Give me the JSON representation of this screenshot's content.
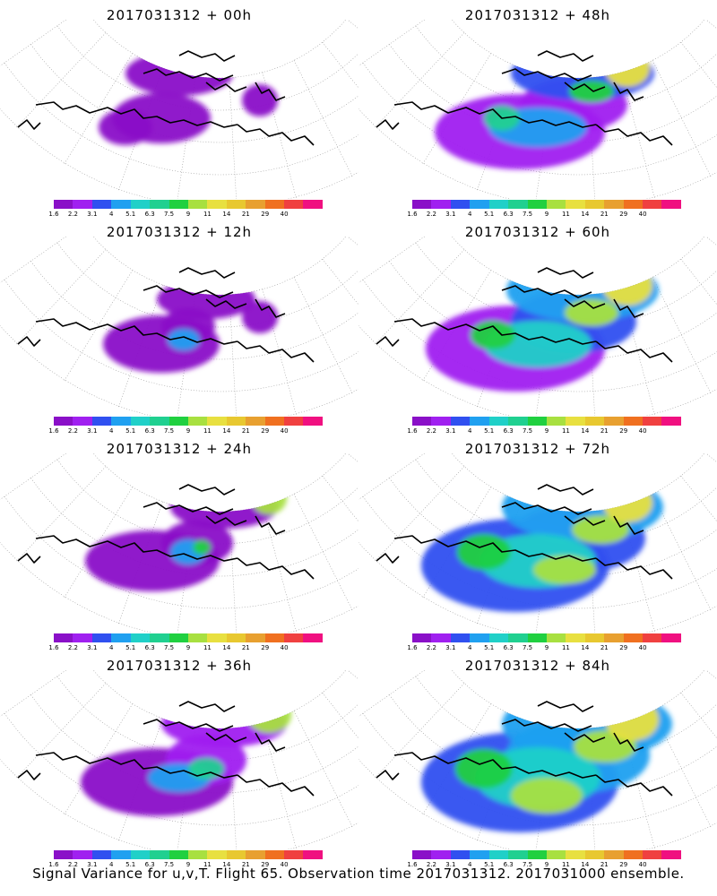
{
  "panels": [
    {
      "title": "2017031312 + 00h",
      "intensity": 0
    },
    {
      "title": "2017031312 + 48h",
      "intensity": 4
    },
    {
      "title": "2017031312 + 12h",
      "intensity": 1
    },
    {
      "title": "2017031312 + 60h",
      "intensity": 5
    },
    {
      "title": "2017031312 + 24h",
      "intensity": 2
    },
    {
      "title": "2017031312 + 72h",
      "intensity": 6
    },
    {
      "title": "2017031312 + 36h",
      "intensity": 3
    },
    {
      "title": "2017031312 + 84h",
      "intensity": 7
    }
  ],
  "colorbar": {
    "colors": [
      "#8a10c8",
      "#a020f0",
      "#3050f0",
      "#20a0f0",
      "#20d0c8",
      "#20d090",
      "#20d040",
      "#a8e040",
      "#e8e040",
      "#e8c830",
      "#e8a030",
      "#f07020",
      "#f04040",
      "#f01080"
    ],
    "labels": [
      "1.6",
      "2.2",
      "3.1",
      "4",
      "5.1",
      "6.3",
      "7.5",
      "9",
      "11",
      "14",
      "21",
      "29",
      "40"
    ]
  },
  "caption": "Signal Variance for u,v,T. Flight 65. Observation time 2017031312. 2017031000 ensemble."
}
